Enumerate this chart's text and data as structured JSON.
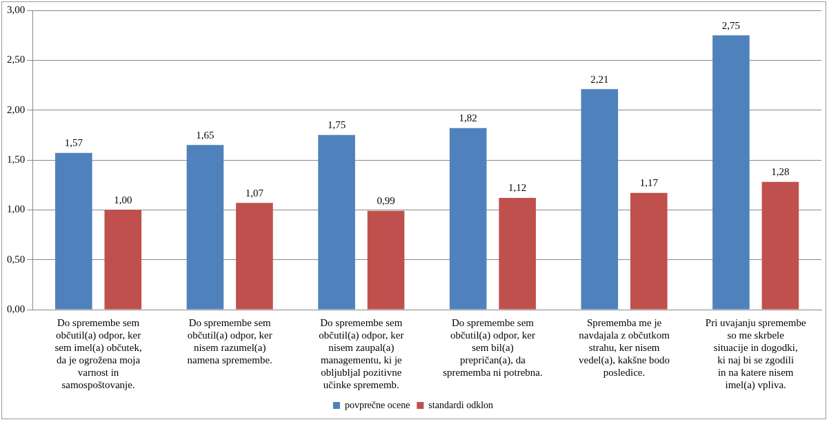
{
  "chart_data": {
    "type": "bar",
    "categories": [
      "Do spremembe sem občutil(a) odpor, ker sem imel(a) občutek, da je ogrožena moja varnost in samospoštovanje.",
      "Do spremembe sem občutil(a) odpor, ker nisem razumel(a) namena spremembe.",
      "Do spremembe sem občutil(a) odpor, ker nisem zaupal(a) managementu, ki je obljubljal pozitivne učinke sprememb.",
      "Do spremembe sem občutil(a) odpor, ker sem bil(a) prepričan(a), da sprememba ni potrebna.",
      "Sprememba me je navdajala z občutkom strahu, ker nisem vedel(a), kakšne bodo posledice.",
      "Pri uvajanju spremembe so me skrbele situacije in dogodki, ki naj bi se zgodili in na katere nisem imel(a) vpliva."
    ],
    "series": [
      {
        "name": "povprečne ocene",
        "color": "#4f81bd",
        "values": [
          1.57,
          1.65,
          1.75,
          1.82,
          2.21,
          2.75
        ],
        "value_labels": [
          "1,57",
          "1,65",
          "1,75",
          "1,82",
          "2,21",
          "2,75"
        ]
      },
      {
        "name": "standardi odklon",
        "color": "#c0504d",
        "values": [
          1.0,
          1.07,
          0.99,
          1.12,
          1.17,
          1.28
        ],
        "value_labels": [
          "1,00",
          "1,07",
          "0,99",
          "1,12",
          "1,17",
          "1,28"
        ]
      }
    ],
    "ylim": [
      0,
      3
    ],
    "yticks": [
      {
        "value": 0,
        "label": "0,00"
      },
      {
        "value": 0.5,
        "label": "0,50"
      },
      {
        "value": 1,
        "label": "1,00"
      },
      {
        "value": 1.5,
        "label": "1,50"
      },
      {
        "value": 2,
        "label": "2,00"
      },
      {
        "value": 2.5,
        "label": "2,50"
      },
      {
        "value": 3,
        "label": "3,00"
      }
    ],
    "grid": "y",
    "legend": "bottom"
  }
}
